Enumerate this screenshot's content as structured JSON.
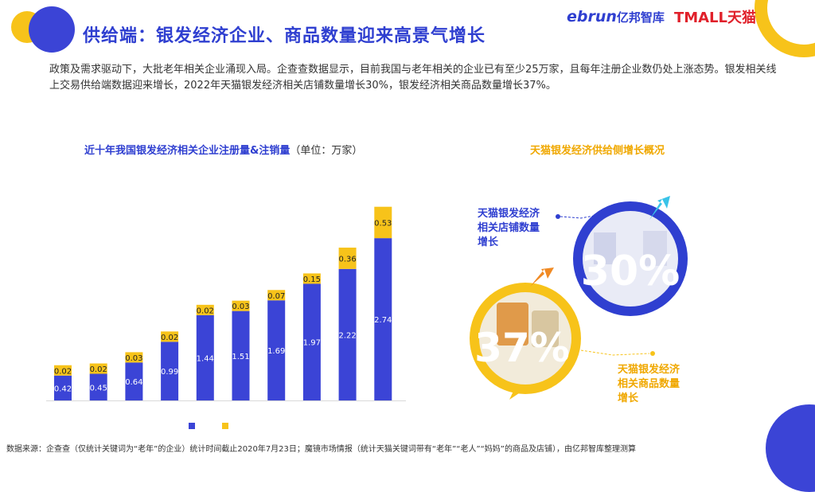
{
  "header": {
    "title": "供给端：银发经济企业、商品数量迎来高景气增长",
    "logo_ebrun_latin": "ebrun",
    "logo_ebrun_cn": "亿邦智库",
    "logo_tmall": "TMALL天猫"
  },
  "intro_text": "政策及需求驱动下，大批老年相关企业涌现入局。企查查数据显示，目前我国与老年相关的企业已有至少25万家，且每年注册企业数仍处上涨态势。银发相关线上交易供给端数据迎来增长，2022年天猫银发经济相关店铺数量增长30%，银发经济相关商品数量增长37%。",
  "chart_data": [
    {
      "type": "bar",
      "stacked": true,
      "title": "近十年我国银发经济相关企业注册量&注销量",
      "title_unit": "（单位：万家）",
      "categories": [
        "",
        "",
        "",
        "",
        "",
        "",
        "",
        "",
        "",
        ""
      ],
      "series": [
        {
          "name": "",
          "color": "#3b44d6",
          "values": [
            0.42,
            0.45,
            0.64,
            0.99,
            1.44,
            1.51,
            1.69,
            1.97,
            2.22,
            2.74
          ]
        },
        {
          "name": "",
          "color": "#f7c31a",
          "values": [
            0.02,
            0.02,
            0.03,
            0.02,
            0.02,
            0.03,
            0.07,
            0.15,
            0.36,
            0.53
          ]
        }
      ],
      "legend_placement": "bottom",
      "grid": false
    },
    {
      "type": "other",
      "title": "天猫银发经济供给侧增长概况",
      "items": [
        {
          "label": "天猫银发经济相关店铺数量增长",
          "value": 30,
          "display": "30%",
          "color": "#2f3fd0"
        },
        {
          "label": "天猫银发经济相关商品数量增长",
          "value": 37,
          "display": "37%",
          "color": "#f7c31a"
        }
      ]
    }
  ],
  "source_note": "数据来源：企查查（仅统计关键词为“老年”的企业）统计时间截止2020年7月23日；魔镜市场情报（统计天猫关键词带有“老年”“老人”“妈妈”的商品及店铺），由亿邦智库整理测算",
  "colors": {
    "brand_blue": "#2f3fd0",
    "accent_yellow": "#f7c31a",
    "tmall_red": "#e0202a"
  }
}
